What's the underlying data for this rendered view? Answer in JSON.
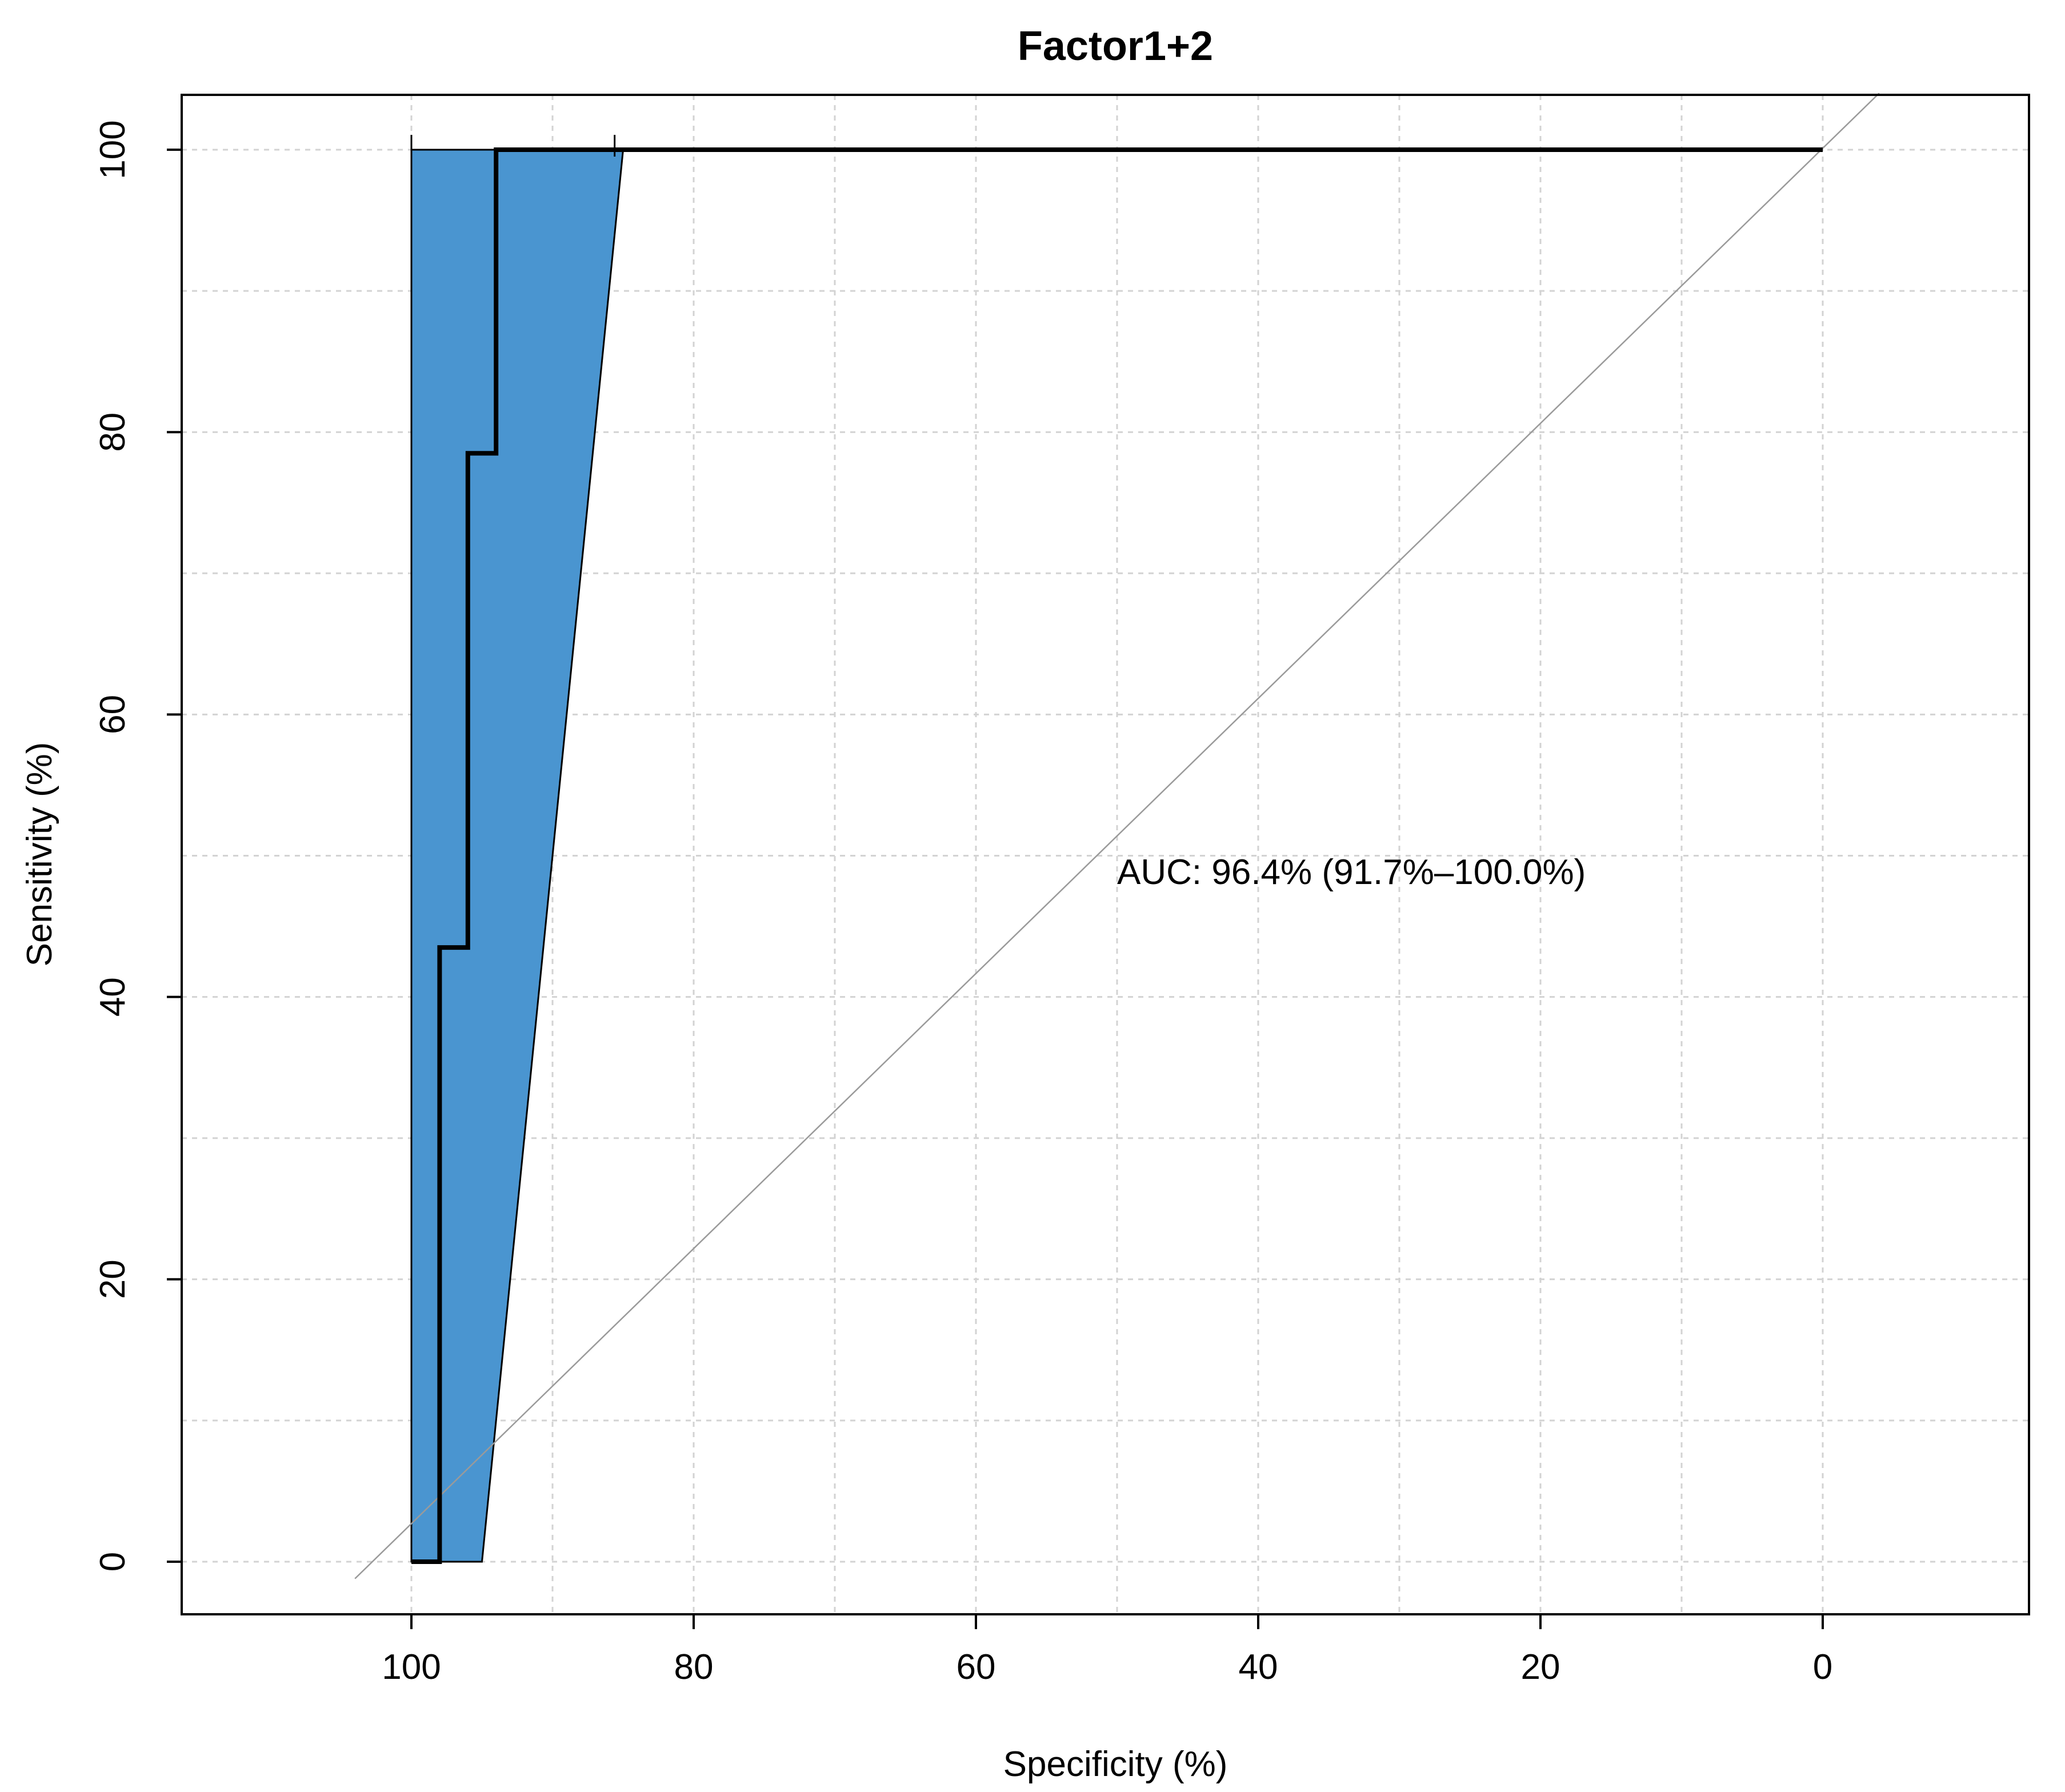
{
  "chart_data": {
    "type": "line",
    "title": "Factor1+2",
    "xlabel": "Specificity (%)",
    "ylabel": "Sensitivity (%)",
    "xlim": [
      115,
      -15
    ],
    "ylim": [
      -4,
      104
    ],
    "x_reversed": true,
    "grid": true,
    "xticks": [
      100,
      80,
      60,
      40,
      20,
      0
    ],
    "yticks": [
      0,
      20,
      40,
      60,
      80,
      100
    ],
    "grid_x": [
      100,
      90,
      80,
      70,
      60,
      50,
      40,
      30,
      20,
      10,
      0
    ],
    "grid_y": [
      0,
      10,
      20,
      30,
      40,
      50,
      60,
      70,
      80,
      90,
      100
    ],
    "series": [
      {
        "type": "step",
        "specificity": [
          100,
          98,
          98,
          96,
          96,
          94,
          94,
          0
        ],
        "sensitivity": [
          0,
          0,
          43.5,
          43.5,
          78.5,
          78.5,
          100,
          100
        ],
        "color": "#000000"
      }
    ],
    "confidence_band": {
      "specificity_upper": [
        100,
        100
      ],
      "sensitivity_upper": [
        0,
        100
      ],
      "specificity_lower": [
        85,
        95
      ],
      "sensitivity_lower": [
        100,
        0
      ],
      "fill": "#4a95d0"
    },
    "reference_line": {
      "from": [
        104,
        -1.2
      ],
      "to": [
        -4,
        104
      ],
      "color": "#9a9a9a"
    },
    "ci_ticks_at_top": [
      100,
      85.6
    ],
    "annotation": {
      "text": "AUC: 96.4% (91.7%–100.0%)",
      "x": 50,
      "y": 48
    }
  }
}
